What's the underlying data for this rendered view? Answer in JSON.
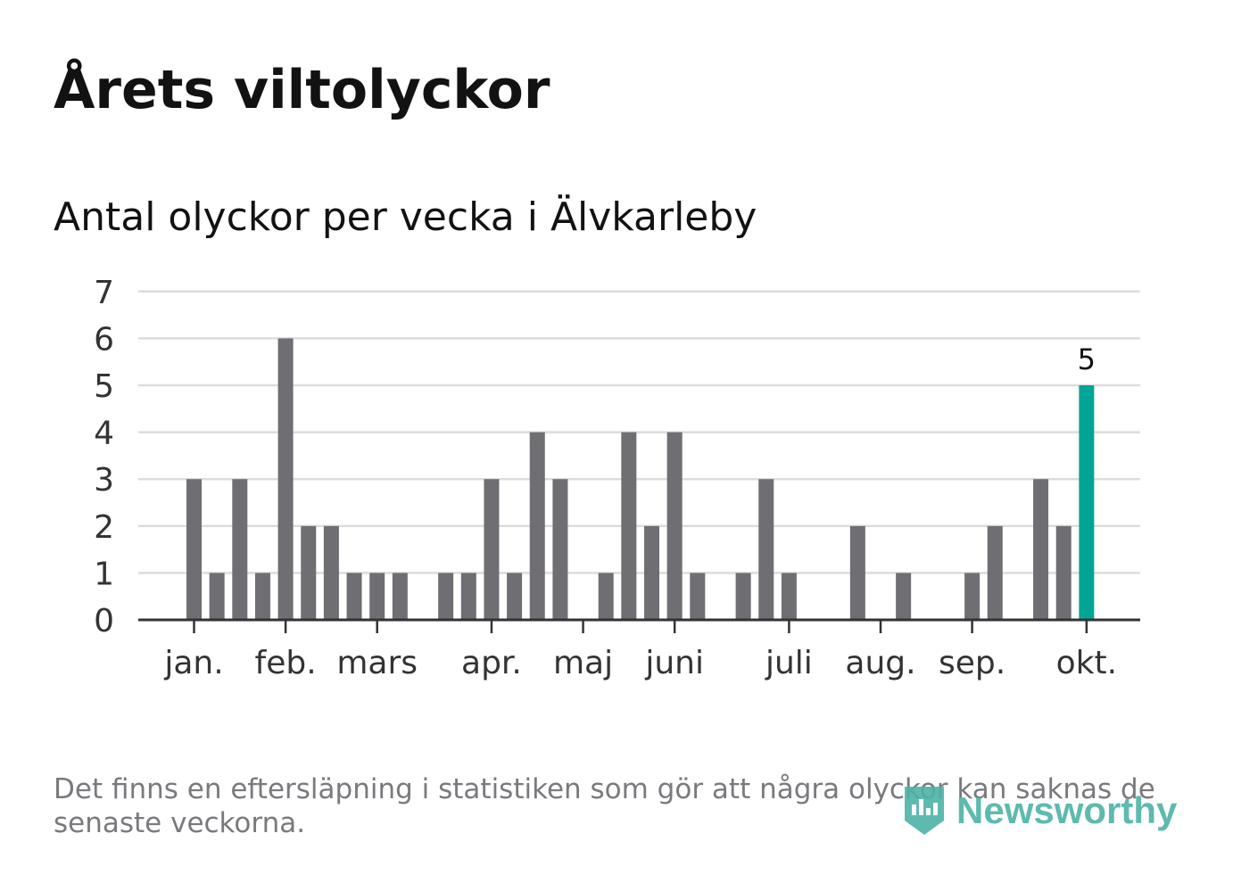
{
  "title": "Årets viltolyckor",
  "subtitle": "Antal olyckor per vecka i Älvkarleby",
  "footnote": "Det finns en eftersläpning i statistiken som gör att några olyckor kan saknas de senaste veckorna.",
  "logo": {
    "text": "Newsworthy",
    "icon": "newsworthy-logo-icon"
  },
  "colors": {
    "bar": "#6e6e73",
    "highlight": "#00a596",
    "grid": "#dcdcdc",
    "axis": "#333333",
    "text": "#121212",
    "muted": "#7a7a7e"
  },
  "chart_data": {
    "type": "bar",
    "title": "Årets viltolyckor",
    "subtitle": "Antal olyckor per vecka i Älvkarleby",
    "xlabel": "",
    "ylabel": "",
    "ylim": [
      0,
      7
    ],
    "yticks": [
      0,
      1,
      2,
      3,
      4,
      5,
      6,
      7
    ],
    "grid": true,
    "weeks": [
      1,
      2,
      3,
      4,
      5,
      6,
      7,
      8,
      9,
      10,
      11,
      12,
      13,
      14,
      15,
      16,
      17,
      18,
      19,
      20,
      21,
      22,
      23,
      24,
      25,
      26,
      27,
      28,
      29,
      30,
      31,
      32,
      33,
      34,
      35,
      36,
      37,
      38,
      39,
      40,
      41
    ],
    "values": [
      3,
      1,
      3,
      1,
      6,
      2,
      2,
      1,
      1,
      1,
      0,
      1,
      1,
      3,
      1,
      4,
      3,
      0,
      1,
      4,
      2,
      4,
      1,
      0,
      1,
      3,
      1,
      0,
      0,
      2,
      0,
      1,
      0,
      0,
      1,
      2,
      0,
      3,
      2,
      5,
      0
    ],
    "highlight_week": 40,
    "highlight_label": "5",
    "month_ticks": [
      {
        "label": "jan.",
        "week": 1
      },
      {
        "label": "feb.",
        "week": 5
      },
      {
        "label": "mars",
        "week": 9
      },
      {
        "label": "apr.",
        "week": 14
      },
      {
        "label": "maj",
        "week": 18
      },
      {
        "label": "juni",
        "week": 22
      },
      {
        "label": "juli",
        "week": 27
      },
      {
        "label": "aug.",
        "week": 31
      },
      {
        "label": "sep.",
        "week": 35
      },
      {
        "label": "okt.",
        "week": 40
      }
    ]
  }
}
